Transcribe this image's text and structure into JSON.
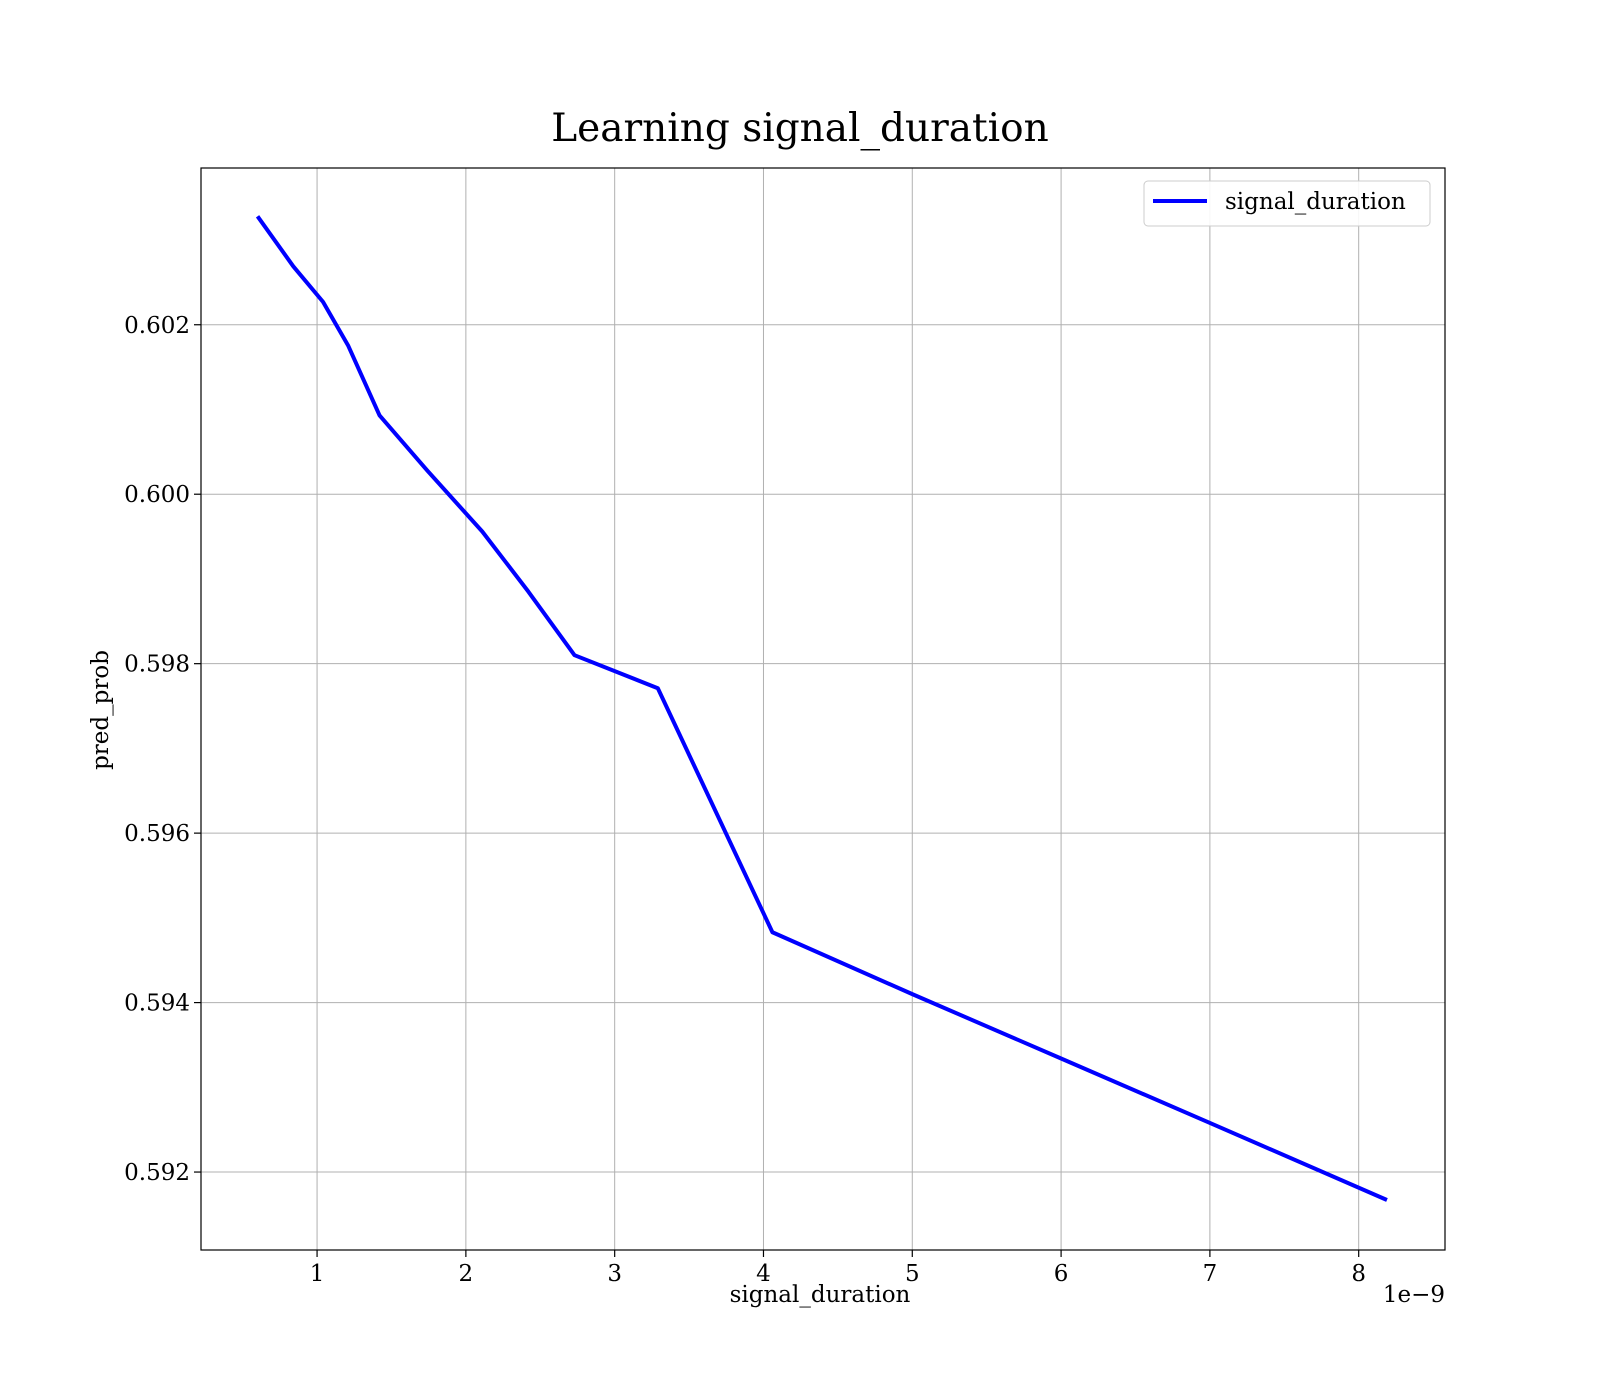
{
  "chart_data": {
    "type": "line",
    "title": "Learning signal_duration",
    "xlabel": "signal_duration",
    "ylabel": "pred_prob",
    "x_offset_label": "1e−9",
    "xlim": [
      0.22,
      8.58
    ],
    "ylim": [
      0.59108,
      0.60385
    ],
    "x_ticks": [
      1,
      2,
      3,
      4,
      5,
      6,
      7,
      8
    ],
    "x_tick_labels": [
      "1",
      "2",
      "3",
      "4",
      "5",
      "6",
      "7",
      "8"
    ],
    "y_ticks": [
      0.592,
      0.594,
      0.596,
      0.598,
      0.6,
      0.602
    ],
    "y_tick_labels": [
      "0.592",
      "0.594",
      "0.596",
      "0.598",
      "0.600",
      "0.602"
    ],
    "grid": true,
    "legend_position": "top-right",
    "series": [
      {
        "name": "signal_duration",
        "color": "#0000ff",
        "x": [
          0.6,
          0.84,
          1.04,
          1.21,
          1.42,
          1.74,
          2.11,
          2.42,
          2.73,
          3.29,
          4.06,
          5.0,
          6.0,
          7.0,
          8.19
        ],
        "y": [
          0.60328,
          0.60269,
          0.60227,
          0.60175,
          0.60093,
          0.60028,
          0.59956,
          0.59885,
          0.5981,
          0.59771,
          0.59483,
          0.5941,
          0.59334,
          0.59258,
          0.59167
        ]
      }
    ]
  }
}
